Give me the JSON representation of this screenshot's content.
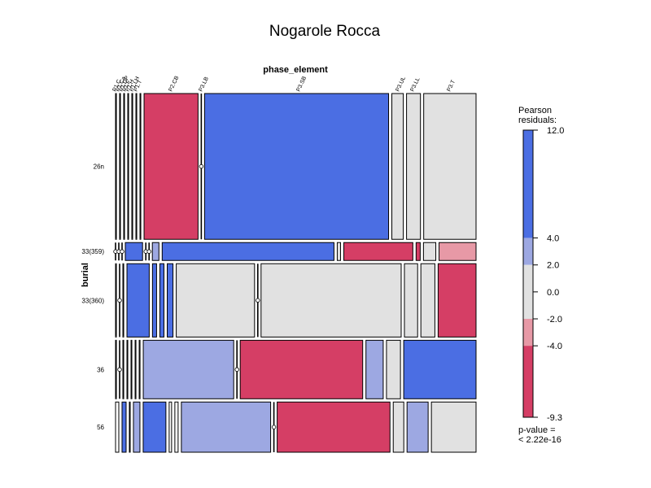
{
  "chart_data": {
    "type": "mosaic",
    "title": "Nogarole Rocca",
    "x_variable": "phase_element",
    "y_variable": "burial",
    "x_tick_labels": [
      "P1.C",
      "P1.Ca",
      "P1.DP",
      "P1.F",
      "P1.H",
      "P1.LH",
      "P1.T",
      "P2.CB",
      "P3.LB",
      "P3.SB",
      "P3.UL",
      "P3.LL",
      "P3.T"
    ],
    "row_labels": [
      "26n",
      "33(359)",
      "33(360)",
      "36",
      "56"
    ],
    "residual_colors": {
      "strong_positive": "#4b6ee3",
      "weak_positive": "#9da8e2",
      "neutral": "#e1e1e1",
      "weak_negative": "#e799a6",
      "strong_negative": "#d53e65"
    },
    "legend": {
      "title_line1": "Pearson",
      "title_line2": "residuals:",
      "ticks": [
        "12.0",
        "4.0",
        "2.0",
        "0.0",
        "-2.0",
        "-4.0",
        "-9.3"
      ],
      "tick_values": [
        12.0,
        4.0,
        2.0,
        0.0,
        -2.0,
        -4.0,
        -9.3
      ],
      "range": [
        -9.3,
        12.0
      ],
      "pvalue_line1": "p-value =",
      "pvalue_line2": "< 2.22e-16"
    },
    "rows": [
      {
        "label": "26n",
        "share": 0.334,
        "cells": [
          {
            "w": 1.0,
            "c": "none"
          },
          {
            "w": 1.0,
            "c": "none"
          },
          {
            "w": 1.0,
            "c": "none"
          },
          {
            "w": 1.0,
            "c": "none"
          },
          {
            "w": 1.0,
            "c": "none"
          },
          {
            "w": 1.0,
            "c": "none"
          },
          {
            "w": 1.0,
            "c": "none"
          },
          {
            "w": 66,
            "c": "strong_negative"
          },
          {
            "w": 0,
            "c": "none"
          },
          {
            "w": 225,
            "c": "strong_positive"
          },
          {
            "w": 14,
            "c": "neutral"
          },
          {
            "w": 17,
            "c": "neutral"
          },
          {
            "w": 64,
            "c": "neutral"
          }
        ]
      },
      {
        "label": "33(359)",
        "share": 0.041,
        "cells": [
          {
            "w": 0,
            "c": "none"
          },
          {
            "w": 0,
            "c": "none"
          },
          {
            "w": 0,
            "c": "none"
          },
          {
            "w": 21,
            "c": "strong_positive"
          },
          {
            "w": 0,
            "c": "none"
          },
          {
            "w": 0,
            "c": "none"
          },
          {
            "w": 8,
            "c": "weak_positive"
          },
          {
            "w": 209,
            "c": "strong_positive"
          },
          {
            "w": 4,
            "c": "neutral"
          },
          {
            "w": 84,
            "c": "strong_negative"
          },
          {
            "w": 5,
            "c": "strong_negative"
          },
          {
            "w": 15,
            "c": "neutral"
          },
          {
            "w": 45,
            "c": "weak_negative"
          }
        ]
      },
      {
        "label": "33(360)",
        "share": 0.168,
        "cells": [
          {
            "w": 1.0,
            "c": "none"
          },
          {
            "w": 0,
            "c": "none"
          },
          {
            "w": 1.0,
            "c": "none"
          },
          {
            "w": 27,
            "c": "strong_positive"
          },
          {
            "w": 5,
            "c": "strong_positive"
          },
          {
            "w": 5,
            "c": "strong_positive"
          },
          {
            "w": 7,
            "c": "strong_positive"
          },
          {
            "w": 95,
            "c": "neutral"
          },
          {
            "w": 0,
            "c": "none"
          },
          {
            "w": 170,
            "c": "neutral"
          },
          {
            "w": 16,
            "c": "neutral"
          },
          {
            "w": 17,
            "c": "neutral"
          },
          {
            "w": 46,
            "c": "strong_negative"
          }
        ]
      },
      {
        "label": "36",
        "share": 0.134,
        "cells": [
          {
            "w": 1.0,
            "c": "none"
          },
          {
            "w": 0,
            "c": "none"
          },
          {
            "w": 1.0,
            "c": "none"
          },
          {
            "w": 1.0,
            "c": "none"
          },
          {
            "w": 1.0,
            "c": "none"
          },
          {
            "w": 1.0,
            "c": "none"
          },
          {
            "w": 1.0,
            "c": "none"
          },
          {
            "w": 110,
            "c": "weak_positive"
          },
          {
            "w": 0,
            "c": "none"
          },
          {
            "w": 149,
            "c": "strong_negative"
          },
          {
            "w": 21,
            "c": "weak_positive"
          },
          {
            "w": 17,
            "c": "neutral"
          },
          {
            "w": 88,
            "c": "strong_positive"
          }
        ]
      },
      {
        "label": "56",
        "share": 0.115,
        "cells": [
          {
            "w": 4,
            "c": "none"
          },
          {
            "w": 5,
            "c": "strong_positive"
          },
          {
            "w": 1.0,
            "c": "none"
          },
          {
            "w": 8,
            "c": "weak_positive"
          },
          {
            "w": 28,
            "c": "strong_positive"
          },
          {
            "w": 3,
            "c": "none"
          },
          {
            "w": 4,
            "c": "none"
          },
          {
            "w": 110,
            "c": "weak_positive"
          },
          {
            "w": 0,
            "c": "none"
          },
          {
            "w": 139,
            "c": "strong_negative"
          },
          {
            "w": 13,
            "c": "neutral"
          },
          {
            "w": 26,
            "c": "weak_positive"
          },
          {
            "w": 55,
            "c": "neutral"
          }
        ]
      }
    ]
  }
}
